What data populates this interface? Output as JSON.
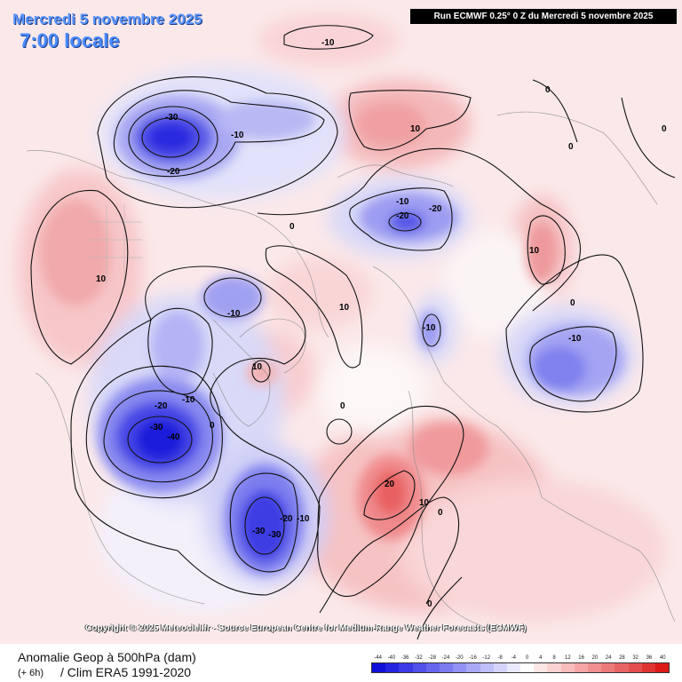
{
  "header": {
    "date": "Mercredi 5 novembre 2025",
    "time": "7:00 locale",
    "run": "Run ECMWF 0.25° 0 Z du Mercredi 5 novembre 2025"
  },
  "copyright": "Copyright © 2025 Meteociel.fr - Source European Centre for Medium-Range Weather Forecasts (ECMWF)",
  "footer": {
    "parameter": "Anomalie Geop à 500hPa (dam)",
    "lead": "(+ 6h)",
    "climatology": "/ Clim ERA5 1991-2020"
  },
  "legend": {
    "ticks": [
      "-44",
      "-40",
      "-36",
      "-32",
      "-28",
      "-24",
      "-20",
      "-16",
      "-12",
      "-8",
      "-4",
      "0",
      "4",
      "8",
      "12",
      "16",
      "20",
      "24",
      "28",
      "32",
      "36",
      "40"
    ],
    "colors": [
      "#1010d8",
      "#2424e0",
      "#3a3ae6",
      "#5050ea",
      "#6666ee",
      "#7c7cf0",
      "#9292f2",
      "#a8a8f5",
      "#bebef8",
      "#d4d4fa",
      "#eaeafd",
      "#ffffff",
      "#fde6e6",
      "#fad2d2",
      "#f7bcbc",
      "#f4a6a6",
      "#f09090",
      "#ec7a7a",
      "#e86464",
      "#e44e4e",
      "#e03434",
      "#dc1a1a"
    ]
  },
  "contour_labels": [
    {
      "id": "ne-pacific-low-center",
      "text": "-30"
    },
    {
      "id": "ne-pacific-low-10",
      "text": "-10"
    },
    {
      "id": "ne-pacific-low-20",
      "text": "-20"
    },
    {
      "id": "arctic-top-neg",
      "text": "-10"
    },
    {
      "id": "siberia-high",
      "text": "10"
    },
    {
      "id": "far-east-zero",
      "text": "0"
    },
    {
      "id": "far-east-zero-2",
      "text": "0"
    },
    {
      "id": "east-zero",
      "text": "0"
    },
    {
      "id": "kara-low-10",
      "text": "-10"
    },
    {
      "id": "kara-low-20a",
      "text": "-20"
    },
    {
      "id": "kara-low-20b",
      "text": "-20"
    },
    {
      "id": "asia-high",
      "text": "10"
    },
    {
      "id": "west-us-high",
      "text": "10"
    },
    {
      "id": "arctic-zero",
      "text": "0"
    },
    {
      "id": "canada-low",
      "text": "-10"
    },
    {
      "id": "arctic-high",
      "text": "10"
    },
    {
      "id": "asia-zero",
      "text": "0"
    },
    {
      "id": "china-low",
      "text": "-10"
    },
    {
      "id": "scandinavia-low",
      "text": "-10"
    },
    {
      "id": "greenland-high",
      "text": "10"
    },
    {
      "id": "hudson-low-20",
      "text": "-20"
    },
    {
      "id": "hudson-low-10",
      "text": "-10"
    },
    {
      "id": "hudson-zero",
      "text": "0"
    },
    {
      "id": "hudson-low-30",
      "text": "-30"
    },
    {
      "id": "hudson-low-40",
      "text": "-40"
    },
    {
      "id": "atlantic-zero",
      "text": "0"
    },
    {
      "id": "europe-high-20",
      "text": "20"
    },
    {
      "id": "europe-high-10",
      "text": "10"
    },
    {
      "id": "europe-zero",
      "text": "0"
    },
    {
      "id": "atlantic-low-20",
      "text": "-20"
    },
    {
      "id": "atlantic-low-10",
      "text": "-10"
    },
    {
      "id": "atlantic-low-30a",
      "text": "-30"
    },
    {
      "id": "atlantic-low-30b",
      "text": "-30"
    },
    {
      "id": "mideast-zero",
      "text": "0"
    }
  ]
}
